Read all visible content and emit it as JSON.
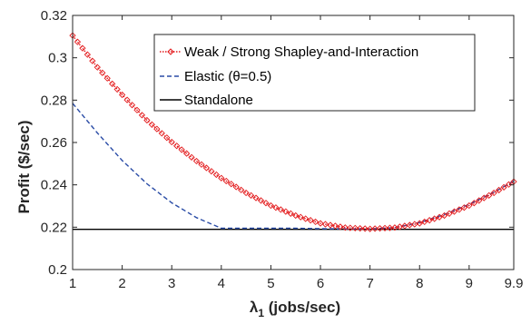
{
  "chart_data": {
    "type": "line",
    "title": "",
    "xlabel": "λ",
    "xlabel_sub": "1",
    "xlabel_rest": " (jobs/sec)",
    "ylabel": "Profit ($/sec)",
    "xlim": [
      1,
      9.9
    ],
    "ylim": [
      0.2,
      0.32
    ],
    "xticks": [
      1,
      2,
      3,
      4,
      5,
      6,
      7,
      8,
      9,
      9.9
    ],
    "xtick_labels": [
      "1",
      "2",
      "3",
      "4",
      "5",
      "6",
      "7",
      "8",
      "9",
      "9.9"
    ],
    "yticks": [
      0.2,
      0.22,
      0.24,
      0.26,
      0.28,
      0.3,
      0.32
    ],
    "ytick_labels": [
      "0.2",
      "0.22",
      "0.24",
      "0.26",
      "0.28",
      "0.3",
      "0.32"
    ],
    "grid": false,
    "legend_placement": "top-right",
    "series": [
      {
        "name": "Weak / Strong Shapley-and-Interaction",
        "color": "#e31a1c",
        "style": "dotted-with-diamond-markers",
        "x": [
          1,
          1.5,
          2,
          2.5,
          3,
          3.5,
          4,
          4.5,
          5,
          5.5,
          6,
          6.5,
          7,
          7.5,
          8,
          8.5,
          9,
          9.5,
          9.9
        ],
        "y": [
          0.3105,
          0.2955,
          0.2825,
          0.2705,
          0.2602,
          0.2512,
          0.2432,
          0.2362,
          0.2302,
          0.2255,
          0.2218,
          0.2198,
          0.2192,
          0.2198,
          0.2218,
          0.2255,
          0.2302,
          0.2362,
          0.2415
        ]
      },
      {
        "name": "Elastic (θ=0.5)",
        "color": "#2a4ca6",
        "style": "dashed",
        "x": [
          1,
          1.5,
          2,
          2.5,
          3,
          3.5,
          4,
          4.5,
          5,
          5.5,
          6,
          6.5,
          7,
          7.5,
          8,
          8.5,
          9,
          9.5,
          9.9
        ],
        "y": [
          0.2785,
          0.2645,
          0.2515,
          0.2405,
          0.2315,
          0.2245,
          0.2195,
          0.2195,
          0.2195,
          0.2195,
          0.2193,
          0.2192,
          0.2192,
          0.2198,
          0.2222,
          0.226,
          0.2308,
          0.2365,
          0.2418
        ]
      },
      {
        "name": "Standalone",
        "color": "#000000",
        "style": "solid",
        "x": [
          1,
          9.9
        ],
        "y": [
          0.219,
          0.219
        ]
      }
    ]
  }
}
